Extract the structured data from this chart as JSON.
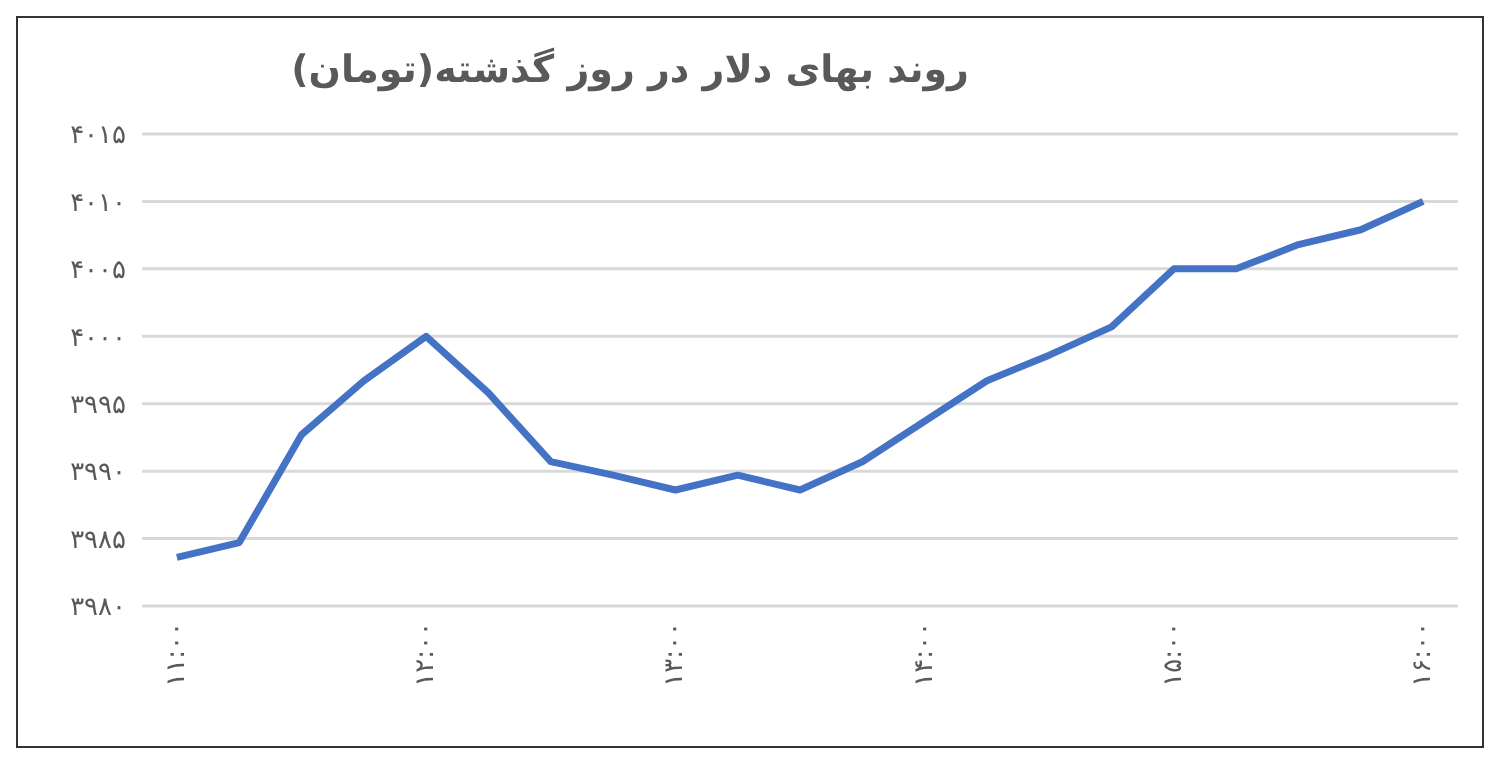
{
  "chart_data": {
    "type": "line",
    "title": "روند بهای دلار در روز گذشته(تومان)",
    "x": [
      11,
      11.25,
      11.5,
      11.75,
      12,
      12.25,
      12.5,
      12.75,
      13,
      13.25,
      13.5,
      13.75,
      14,
      14.25,
      14.5,
      14.75,
      15,
      15.25,
      15.5,
      15.75,
      16
    ],
    "series": [
      {
        "color": "#4472c4",
        "values": [
          3983.6,
          3984.7,
          3992.7,
          3996.7,
          4000,
          3995.8,
          3990.7,
          3989.7,
          3988.6,
          3989.7,
          3988.6,
          3990.7,
          3993.7,
          3996.7,
          3998.6,
          4000.7,
          4005,
          4005,
          4006.8,
          4007.9,
          4010
        ]
      }
    ],
    "xlim": [
      10.86,
      16.14
    ],
    "xticks": [
      {
        "value": 11,
        "label": "۱۱:۰۰"
      },
      {
        "value": 12,
        "label": "۱۲:۰۰"
      },
      {
        "value": 13,
        "label": "۱۳:۰۰"
      },
      {
        "value": 14,
        "label": "۱۴:۰۰"
      },
      {
        "value": 15,
        "label": "۱۵:۰۰"
      },
      {
        "value": 16,
        "label": "۱۶:۰۰"
      }
    ],
    "ylim": [
      3980,
      4015
    ],
    "yticks": [
      {
        "value": 3980,
        "label": "۳۹۸۰"
      },
      {
        "value": 3985,
        "label": "۳۹۸۵"
      },
      {
        "value": 3990,
        "label": "۳۹۹۰"
      },
      {
        "value": 3995,
        "label": "۳۹۹۵"
      },
      {
        "value": 4000,
        "label": "۴۰۰۰"
      },
      {
        "value": 4005,
        "label": "۴۰۰۵"
      },
      {
        "value": 4010,
        "label": "۴۰۱۰"
      },
      {
        "value": 4015,
        "label": "۴۰۱۵"
      }
    ],
    "grid": "y",
    "marker": "none",
    "line_style": "solid"
  }
}
